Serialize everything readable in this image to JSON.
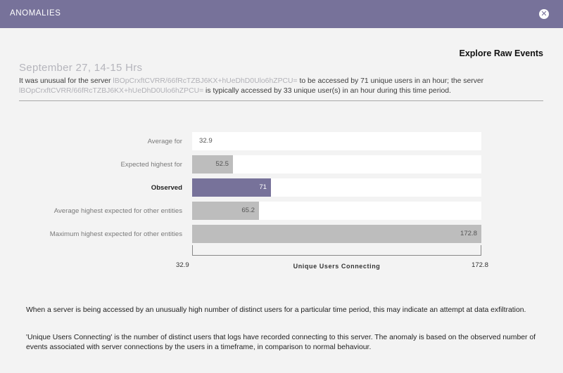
{
  "header": {
    "title": "ANOMALIES",
    "close_label": "✕"
  },
  "explore_label": "Explore Raw Events",
  "date_heading": "September 27, 14-15 Hrs",
  "summary": {
    "part1": "It was unusual for the server ",
    "server": "lBOpCrxftCVRR/66fRcTZBJ6KX+hUeDhD0Ulo6hZPCU=",
    "part2": " to be accessed by 71 unique users in an hour; the server ",
    "part3": " is typically accessed by 33 unique user(s) in an hour during this time period."
  },
  "chart_data": {
    "type": "bar",
    "orientation": "horizontal",
    "categories": [
      "Average for",
      "Expected highest for",
      "Observed",
      "Average highest expected for other entities",
      "Maximum highest expected for other entities"
    ],
    "labels": [
      "32.9",
      "52.5",
      "71",
      "65.2",
      "172.8"
    ],
    "values": [
      32.9,
      52.5,
      71,
      65.2,
      172.8
    ],
    "highlight_index": 2,
    "xlim": [
      32.9,
      172.8
    ],
    "x_min_label": "32.9",
    "x_max_label": "172.8",
    "xlabel": "Unique Users Connecting",
    "colors": {
      "default": "#bdbdbd",
      "highlight": "#77729a",
      "track": "#ffffff"
    }
  },
  "description": {
    "p1": "When a server is being accessed by an unusually high number of distinct users for a particular time period, this may indicate an attempt at data exfiltration.",
    "p2": "'Unique Users Connecting' is the number of distinct users that logs have recorded connecting to this server. The anomaly is based on the observed number of events associated with server connections by the users in a timeframe, in comparison to normal behaviour."
  }
}
